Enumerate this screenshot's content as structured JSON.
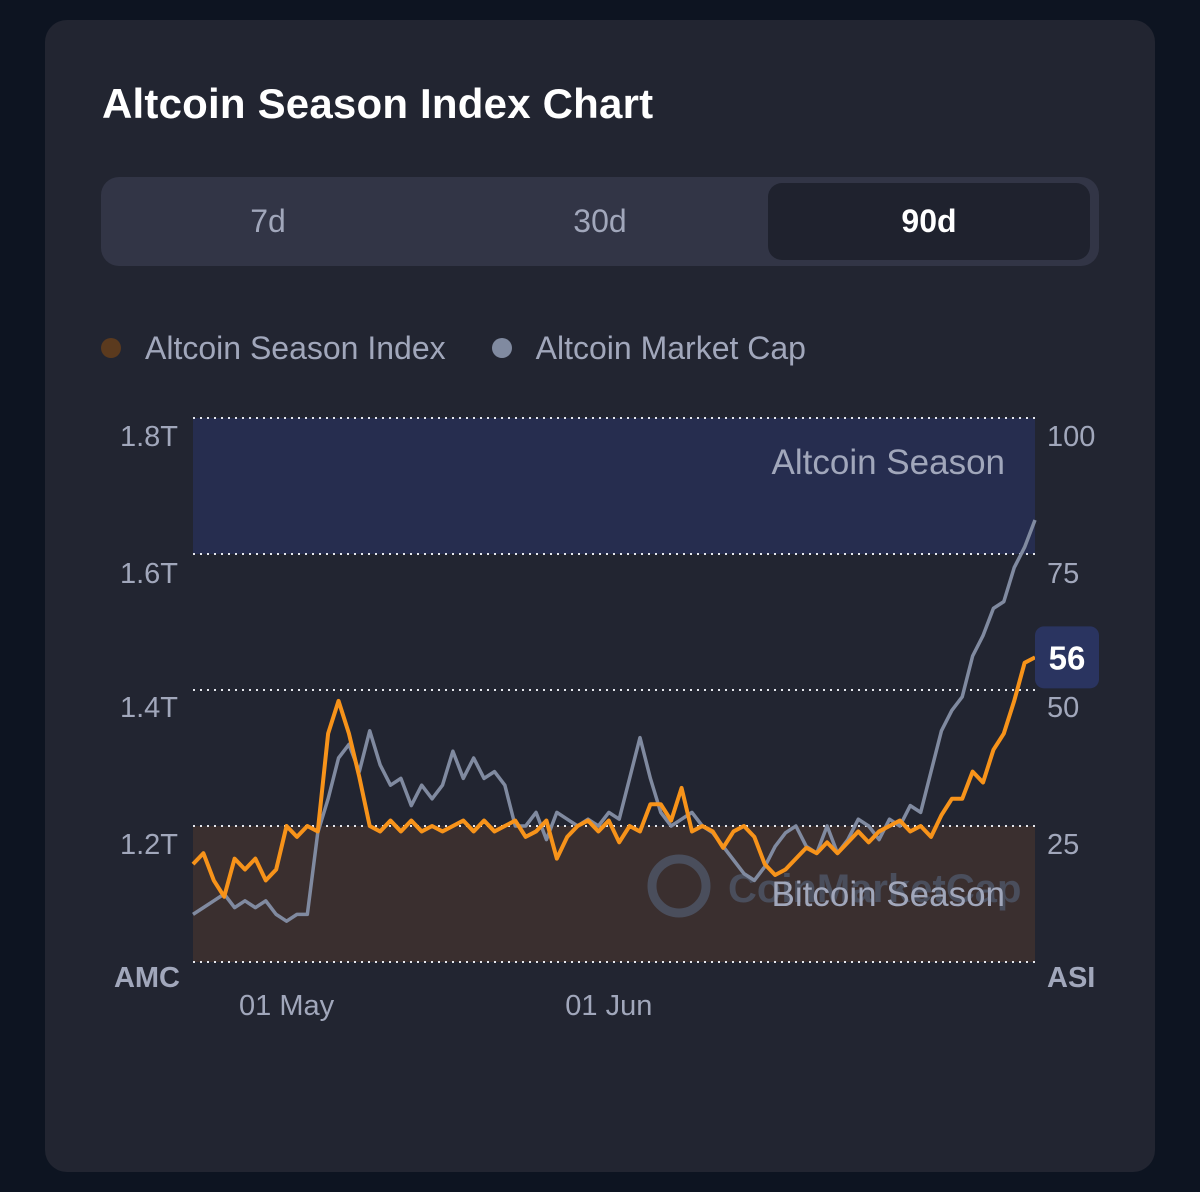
{
  "card": {
    "title": "Altcoin Season Index Chart"
  },
  "tabs": [
    {
      "label": "7d",
      "active": false
    },
    {
      "label": "30d",
      "active": false
    },
    {
      "label": "90d",
      "active": true
    }
  ],
  "legend": [
    {
      "label": "Altcoin Season Index",
      "color": "#5b3a1e"
    },
    {
      "label": "Altcoin Market Cap",
      "color": "#808aa0"
    }
  ],
  "watermark": "CoinMarketCap",
  "chart_data": {
    "type": "line",
    "left_axis": {
      "title": "AMC",
      "ticks": [
        "1.8T",
        "1.6T",
        "1.4T",
        "1.2T"
      ],
      "range": [
        1.0,
        1.8
      ]
    },
    "right_axis": {
      "title": "ASI",
      "ticks": [
        "100",
        "75",
        "50",
        "25"
      ],
      "range": [
        0,
        100
      ]
    },
    "x_labels": [
      {
        "label": "01 May",
        "index": 9
      },
      {
        "label": "01 Jun",
        "index": 40
      }
    ],
    "zones": [
      {
        "label": "Altcoin Season",
        "from": 75,
        "to": 100,
        "color": "#262d4f"
      },
      {
        "label": "Bitcoin Season",
        "from": 0,
        "to": 25,
        "color": "#3a2f2f"
      }
    ],
    "current_value": "56",
    "series": [
      {
        "name": "Altcoin Season Index",
        "axis": "right",
        "color": "#f7931a",
        "values": [
          18,
          20,
          15,
          12,
          19,
          17,
          19,
          15,
          17,
          25,
          23,
          25,
          24,
          42,
          48,
          42,
          34,
          25,
          24,
          26,
          24,
          26,
          24,
          25,
          24,
          25,
          26,
          24,
          26,
          24,
          25,
          26,
          23,
          24,
          26,
          19,
          23,
          25,
          26,
          24,
          26,
          22,
          25,
          24,
          29,
          29,
          26,
          32,
          24,
          25,
          24,
          21,
          24,
          25,
          23,
          18,
          16,
          17,
          19,
          21,
          20,
          22,
          20,
          22,
          24,
          22,
          24,
          25,
          26,
          24,
          25,
          23,
          27,
          30,
          30,
          35,
          33,
          39,
          42,
          48,
          55,
          56
        ]
      },
      {
        "name": "Altcoin Market Cap",
        "axis": "left",
        "values": [
          1.07,
          1.08,
          1.09,
          1.1,
          1.08,
          1.09,
          1.08,
          1.09,
          1.07,
          1.06,
          1.07,
          1.07,
          1.19,
          1.24,
          1.3,
          1.32,
          1.28,
          1.34,
          1.29,
          1.26,
          1.27,
          1.23,
          1.26,
          1.24,
          1.26,
          1.31,
          1.27,
          1.3,
          1.27,
          1.28,
          1.26,
          1.2,
          1.2,
          1.22,
          1.18,
          1.22,
          1.21,
          1.2,
          1.21,
          1.2,
          1.22,
          1.21,
          1.27,
          1.33,
          1.27,
          1.22,
          1.2,
          1.21,
          1.22,
          1.2,
          1.19,
          1.17,
          1.15,
          1.13,
          1.12,
          1.14,
          1.17,
          1.19,
          1.2,
          1.17,
          1.16,
          1.2,
          1.16,
          1.18,
          1.21,
          1.2,
          1.18,
          1.21,
          1.2,
          1.23,
          1.22,
          1.28,
          1.34,
          1.37,
          1.39,
          1.45,
          1.48,
          1.52,
          1.53,
          1.58,
          1.61,
          1.65
        ]
      }
    ]
  }
}
